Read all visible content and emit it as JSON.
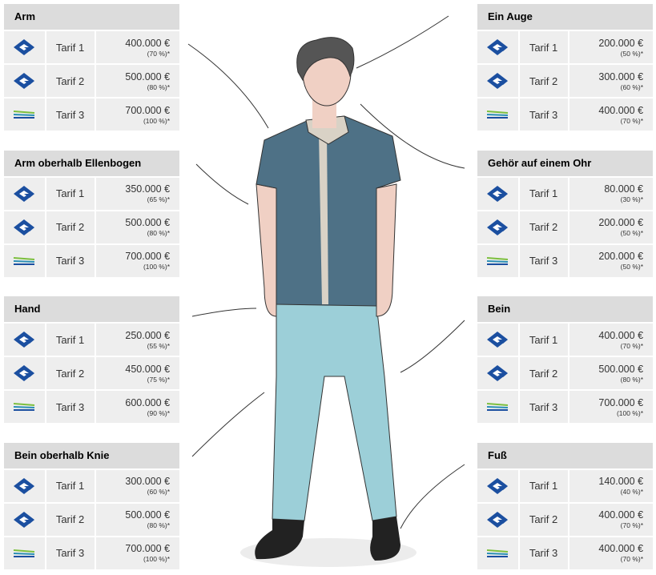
{
  "tables": [
    {
      "title": "Arm",
      "rows": [
        {
          "tarif": "Tarif 1",
          "amount": "400.000 €",
          "percent": "(70 %)*"
        },
        {
          "tarif": "Tarif 2",
          "amount": "500.000 €",
          "percent": "(80 %)*"
        },
        {
          "tarif": "Tarif 3",
          "amount": "700.000 €",
          "percent": "(100 %)*"
        }
      ]
    },
    {
      "title": "Arm oberhalb Ellenbogen",
      "rows": [
        {
          "tarif": "Tarif 1",
          "amount": "350.000 €",
          "percent": "(65 %)*"
        },
        {
          "tarif": "Tarif 2",
          "amount": "500.000 €",
          "percent": "(80 %)*"
        },
        {
          "tarif": "Tarif 3",
          "amount": "700.000 €",
          "percent": "(100 %)*"
        }
      ]
    },
    {
      "title": "Hand",
      "rows": [
        {
          "tarif": "Tarif 1",
          "amount": "250.000 €",
          "percent": "(55 %)*"
        },
        {
          "tarif": "Tarif 2",
          "amount": "450.000 €",
          "percent": "(75 %)*"
        },
        {
          "tarif": "Tarif 3",
          "amount": "600.000 €",
          "percent": "(90 %)*"
        }
      ]
    },
    {
      "title": "Bein oberhalb Knie",
      "rows": [
        {
          "tarif": "Tarif 1",
          "amount": "300.000 €",
          "percent": "(60 %)*"
        },
        {
          "tarif": "Tarif 2",
          "amount": "500.000 €",
          "percent": "(80 %)*"
        },
        {
          "tarif": "Tarif 3",
          "amount": "700.000 €",
          "percent": "(100 %)*"
        }
      ]
    },
    {
      "title": "Ein Auge",
      "rows": [
        {
          "tarif": "Tarif 1",
          "amount": "200.000 €",
          "percent": "(50 %)*"
        },
        {
          "tarif": "Tarif 2",
          "amount": "300.000 €",
          "percent": "(60 %)*"
        },
        {
          "tarif": "Tarif 3",
          "amount": "400.000 €",
          "percent": "(70 %)*"
        }
      ]
    },
    {
      "title": "Gehör auf einem Ohr",
      "rows": [
        {
          "tarif": "Tarif 1",
          "amount": "80.000 €",
          "percent": "(30 %)*"
        },
        {
          "tarif": "Tarif 2",
          "amount": "200.000 €",
          "percent": "(50 %)*"
        },
        {
          "tarif": "Tarif 3",
          "amount": "200.000 €",
          "percent": "(50 %)*"
        }
      ]
    },
    {
      "title": "Bein",
      "rows": [
        {
          "tarif": "Tarif 1",
          "amount": "400.000 €",
          "percent": "(70 %)*"
        },
        {
          "tarif": "Tarif 2",
          "amount": "500.000 €",
          "percent": "(80 %)*"
        },
        {
          "tarif": "Tarif 3",
          "amount": "700.000 €",
          "percent": "(100 %)*"
        }
      ]
    },
    {
      "title": "Fuß",
      "rows": [
        {
          "tarif": "Tarif 1",
          "amount": "140.000 €",
          "percent": "(40 %)*"
        },
        {
          "tarif": "Tarif 2",
          "amount": "400.000 €",
          "percent": "(70 %)*"
        },
        {
          "tarif": "Tarif 3",
          "amount": "400.000 €",
          "percent": "(70 %)*"
        }
      ]
    }
  ]
}
